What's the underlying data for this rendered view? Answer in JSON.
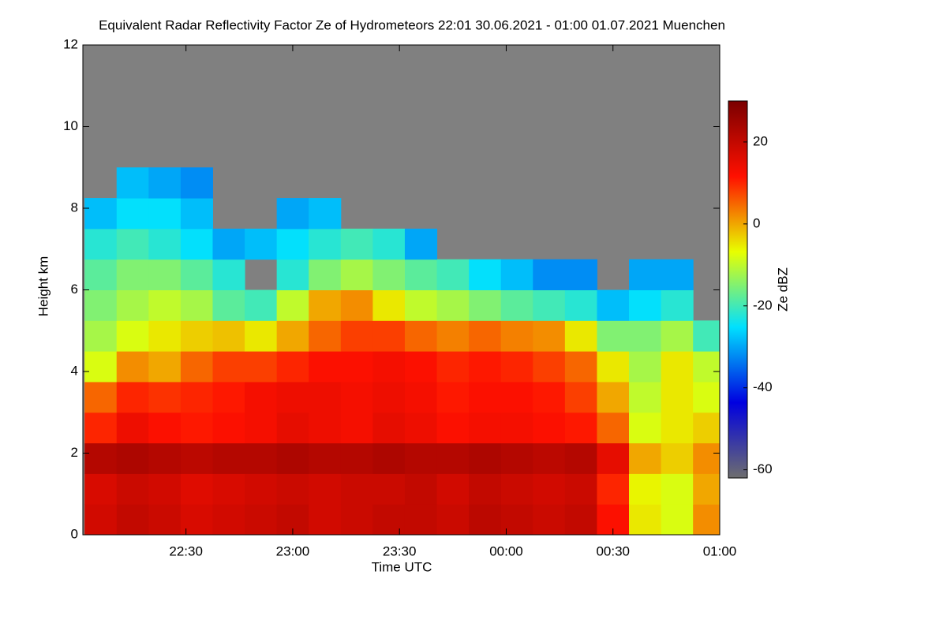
{
  "chart_data": {
    "type": "heatmap",
    "title": "Equivalent Radar Reflectivity Factor Ze of Hydrometeors   22:01 30.06.2021 - 01:00 01.07.2021 Muenchen",
    "x_label": "Time UTC",
    "y_label": "Height km",
    "colorbar_label": "Ze dBZ",
    "x": [
      22.1,
      22.25,
      22.4,
      22.55,
      22.7,
      22.85,
      23.0,
      23.15,
      23.3,
      23.45,
      23.6,
      23.75,
      23.9,
      24.05,
      24.2,
      24.35,
      24.5,
      24.65,
      24.8,
      24.95
    ],
    "y": [
      0.375,
      1.125,
      1.875,
      2.625,
      3.375,
      4.125,
      4.875,
      5.625,
      6.375,
      7.125,
      7.875,
      8.625
    ],
    "values": [
      [
        18,
        20,
        19,
        17,
        18,
        19,
        20,
        18,
        19,
        20,
        20,
        19,
        21,
        20,
        19,
        20,
        12,
        -5,
        -8,
        2
      ],
      [
        17,
        19,
        18,
        16,
        17,
        18,
        19,
        18,
        19,
        19,
        20,
        18,
        20,
        19,
        18,
        19,
        10,
        -6,
        -8,
        0
      ],
      [
        22,
        23,
        22,
        21,
        22,
        22,
        23,
        22,
        22,
        23,
        22,
        22,
        23,
        22,
        21,
        22,
        15,
        0,
        -3,
        2
      ],
      [
        10,
        14,
        12,
        11,
        12,
        13,
        15,
        14,
        13,
        15,
        14,
        12,
        13,
        13,
        12,
        11,
        5,
        -8,
        -5,
        -3
      ],
      [
        5,
        10,
        9,
        10,
        11,
        13,
        14,
        14,
        13,
        14,
        13,
        11,
        12,
        12,
        11,
        8,
        0,
        -10,
        -5,
        -8
      ],
      [
        -8,
        2,
        0,
        5,
        8,
        8,
        10,
        12,
        12,
        13,
        12,
        10,
        11,
        10,
        8,
        5,
        -5,
        -12,
        -5,
        -10
      ],
      [
        -12,
        -8,
        -5,
        -3,
        -2,
        -5,
        0,
        5,
        8,
        8,
        5,
        3,
        5,
        3,
        2,
        -5,
        -15,
        -15,
        -12,
        -20
      ],
      [
        -15,
        -12,
        -10,
        -12,
        -18,
        -20,
        -10,
        0,
        2,
        -5,
        -10,
        -12,
        -15,
        -18,
        -20,
        -22,
        -28,
        -25,
        -22,
        null
      ],
      [
        -18,
        -15,
        -15,
        -18,
        -22,
        null,
        -22,
        -15,
        -12,
        -15,
        -18,
        -20,
        -25,
        -28,
        -32,
        -32,
        null,
        -30,
        -30,
        null
      ],
      [
        -22,
        -20,
        -22,
        -25,
        -30,
        -28,
        -25,
        -22,
        -20,
        -22,
        -30,
        null,
        null,
        null,
        null,
        null,
        null,
        null,
        null,
        null
      ],
      [
        -28,
        -25,
        -25,
        -28,
        null,
        null,
        -30,
        -28,
        null,
        null,
        null,
        null,
        null,
        null,
        null,
        null,
        null,
        null,
        null,
        null
      ],
      [
        null,
        -28,
        -30,
        -32,
        null,
        null,
        null,
        null,
        null,
        null,
        null,
        null,
        null,
        null,
        null,
        null,
        null,
        null,
        null,
        null
      ]
    ],
    "xlim": [
      22.017,
      25.0
    ],
    "xticks": [
      {
        "value": 22.5,
        "label": "22:30"
      },
      {
        "value": 23.0,
        "label": "23:00"
      },
      {
        "value": 23.5,
        "label": "23:30"
      },
      {
        "value": 24.0,
        "label": "00:00"
      },
      {
        "value": 24.5,
        "label": "00:30"
      },
      {
        "value": 25.0,
        "label": "01:00"
      }
    ],
    "ylim": [
      0,
      12
    ],
    "yticks": [
      0,
      2,
      4,
      6,
      8,
      10,
      12
    ],
    "zlim": [
      -62,
      30
    ],
    "zticks": [
      -60,
      -40,
      -20,
      0,
      20
    ],
    "colormap": [
      "#6e6e6e",
      "#0000e0",
      "#00e0ff",
      "#e8ff00",
      "#ff1000",
      "#7a0000"
    ],
    "missing_color": "#808080"
  }
}
